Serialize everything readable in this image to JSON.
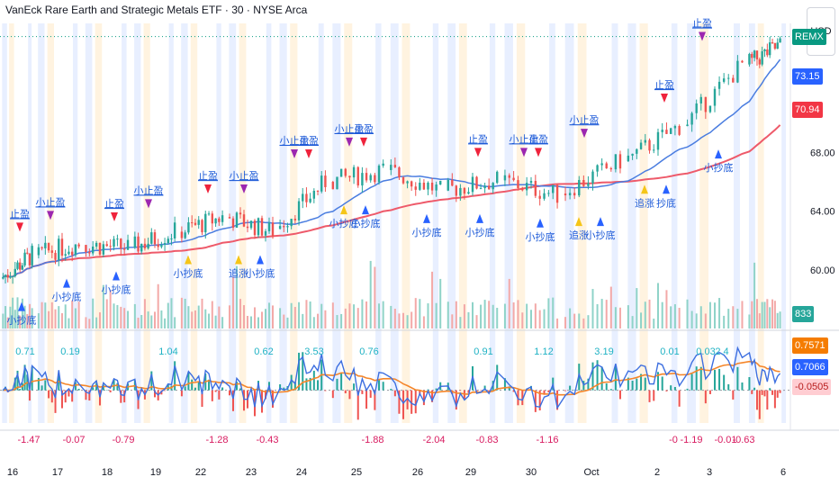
{
  "header": {
    "title": "VanEck Rare Earth and Strategic Metals ETF · 30 · NYSE Arca",
    "currency": "USD"
  },
  "colors": {
    "up": "#26a69a",
    "down": "#ef5350",
    "ma_fast": "#4a7de0",
    "ma_slow": "#ee5a6a",
    "buy_arrow": "#2962ff",
    "sell_arrow": "#ef233c",
    "purple_arrow": "#9c27b0",
    "yellow_arrow": "#f5c518",
    "label_text": "#1e5bd8",
    "macd_dif": "#3d6fe0",
    "macd_dea": "#f5862a",
    "cyan_label": "#1fb2c4",
    "red_label": "#d81b60",
    "band_blue": "#e8efff",
    "band_orange": "#fff3e0"
  },
  "price_badges": [
    {
      "text": "REMX",
      "color": "#089981",
      "price": 75.9
    },
    {
      "text": "73.15",
      "color": "#2962ff",
      "price": 73.15
    },
    {
      "text": "70.94",
      "color": "#f23645",
      "price": 70.94
    },
    {
      "text": "833",
      "color": "#26a69a",
      "price": 57.0
    }
  ],
  "macd_badges": [
    {
      "text": "0.7571",
      "color": "#f57c00",
      "value": 0.7571
    },
    {
      "text": "0.7066",
      "color": "#2962ff",
      "value": 0.7066
    },
    {
      "text": "-0.0505",
      "color": "#ffcdd2",
      "text_color": "#b71c1c",
      "value": -0.0505
    }
  ],
  "chart_data": {
    "type": "candlestick",
    "price_axis": {
      "ticks": [
        "68.00",
        "64.00",
        "60.00"
      ],
      "tick_values": [
        68,
        64,
        60
      ],
      "range": [
        56.0,
        76.8
      ]
    },
    "x_labels": [
      "16",
      "17",
      "18",
      "19",
      "22",
      "23",
      "24",
      "25",
      "26",
      "29",
      "30",
      "Oct",
      "2",
      "3",
      "6"
    ],
    "label_cycle_minutes": [
      10,
      0,
      15
    ],
    "dates": [
      "09-16",
      "09-17",
      "09-18",
      "09-19",
      "09-22",
      "09-23",
      "09-24",
      "09-25",
      "09-26",
      "09-29",
      "09-30",
      "10-01",
      "10-02",
      "10-03",
      "10-06"
    ],
    "day_closes": [
      61.0,
      61.8,
      61.5,
      62.6,
      63.6,
      62.6,
      66.0,
      66.8,
      65.4,
      66.1,
      65.1,
      67.4,
      69.8,
      74.0,
      75.3
    ],
    "day_opens": [
      59.4,
      61.0,
      61.7,
      61.5,
      62.6,
      63.6,
      62.8,
      66.0,
      66.8,
      65.4,
      66.1,
      65.2,
      67.4,
      69.8,
      74.0
    ],
    "ma_fast_end": 73.15,
    "ma_slow_end": 70.94,
    "signals": {
      "stop_profit": "止盈",
      "small_stop_profit": "小止盈",
      "small_bottom": "小抄底",
      "chase": "追涨",
      "bottom": "抄底",
      "points": [
        {
          "date": "09-16",
          "type": "sell",
          "label": "止盈"
        },
        {
          "date": "09-16",
          "type": "buy",
          "label": "小抄底"
        },
        {
          "date": "09-17",
          "type": "purple",
          "label": "小止盈"
        },
        {
          "date": "09-18",
          "type": "sell",
          "label": "止盈"
        },
        {
          "date": "09-17",
          "type": "buy",
          "label": "小抄底"
        },
        {
          "date": "09-18",
          "type": "buy",
          "label": "小抄底"
        },
        {
          "date": "09-19",
          "type": "purple",
          "label": "小止盈"
        },
        {
          "date": "09-22",
          "type": "sell",
          "label": "止盈"
        },
        {
          "date": "09-23",
          "type": "purple",
          "label": "小止盈"
        },
        {
          "date": "09-22",
          "type": "yellow",
          "label": "小抄底"
        },
        {
          "date": "09-23",
          "type": "yellow",
          "label": "追涨"
        },
        {
          "date": "09-23",
          "type": "buy",
          "label": "小抄底"
        },
        {
          "date": "09-24",
          "type": "purple",
          "label": "小止盈"
        },
        {
          "date": "09-24",
          "type": "sell",
          "label": "止盈"
        },
        {
          "date": "09-25",
          "type": "purple",
          "label": "小止盈"
        },
        {
          "date": "09-25",
          "type": "sell",
          "label": "止盈"
        },
        {
          "date": "09-25",
          "type": "yellow",
          "label": "小抄底"
        },
        {
          "date": "09-25",
          "type": "buy",
          "label": "小抄底"
        },
        {
          "date": "09-26",
          "type": "buy",
          "label": "小抄底"
        },
        {
          "date": "09-29",
          "type": "sell",
          "label": "止盈"
        },
        {
          "date": "09-29",
          "type": "buy",
          "label": "小抄底"
        },
        {
          "date": "09-30",
          "type": "buy",
          "label": "小抄底"
        },
        {
          "date": "09-30",
          "type": "purple",
          "label": "小止盈"
        },
        {
          "date": "09-30",
          "type": "sell",
          "label": "止盈"
        },
        {
          "date": "10-01",
          "type": "buy",
          "label": "小抄底"
        },
        {
          "date": "10-01",
          "type": "yellow",
          "label": "追涨"
        },
        {
          "date": "10-01",
          "type": "purple",
          "label": "小止盈"
        },
        {
          "date": "10-02",
          "type": "sell",
          "label": "止盈"
        },
        {
          "date": "10-02",
          "type": "yellow",
          "label": "追涨"
        },
        {
          "date": "10-02",
          "type": "buy",
          "label": "抄底"
        },
        {
          "date": "10-03",
          "type": "purple",
          "label": "止盈"
        },
        {
          "date": "10-03",
          "type": "buy",
          "label": "小抄底"
        }
      ]
    },
    "macd_pos_labels": [
      {
        "date": "09-16",
        "text": "0.71"
      },
      {
        "date": "09-17",
        "text": "0.19"
      },
      {
        "date": "09-19",
        "text": "1.04"
      },
      {
        "date": "09-23",
        "text": "0.62"
      },
      {
        "date": "09-24",
        "text": "3.53"
      },
      {
        "date": "09-25",
        "text": "0.76"
      },
      {
        "date": "09-29",
        "text": "0.91"
      },
      {
        "date": "09-30",
        "text": "1.12"
      },
      {
        "date": "10-01",
        "text": "3.19"
      },
      {
        "date": "10-02",
        "text": "0.01"
      },
      {
        "date": "10-02",
        "text": "0.03"
      },
      {
        "date": "10-03",
        "text": "2.4"
      }
    ],
    "macd_neg_labels": [
      {
        "date": "09-16",
        "text": "-1.47"
      },
      {
        "date": "09-17",
        "text": "-0.07"
      },
      {
        "date": "09-18",
        "text": "-0.79"
      },
      {
        "date": "09-22",
        "text": "-1.28"
      },
      {
        "date": "09-23",
        "text": "-0.43"
      },
      {
        "date": "09-25",
        "text": "-1.88"
      },
      {
        "date": "09-26",
        "text": "-2.04"
      },
      {
        "date": "09-29",
        "text": "-0.83"
      },
      {
        "date": "09-30",
        "text": "-1.16"
      },
      {
        "date": "10-02",
        "text": "-0"
      },
      {
        "date": "10-02",
        "text": "-1.19"
      },
      {
        "date": "10-03",
        "text": "-0.01"
      },
      {
        "date": "10-03",
        "text": "-0.63"
      }
    ],
    "macd": {
      "dif_end": 0.7571,
      "dea_end": 0.7066,
      "hist_end": -0.0505,
      "range": [
        -1.6,
        2.8
      ]
    }
  }
}
